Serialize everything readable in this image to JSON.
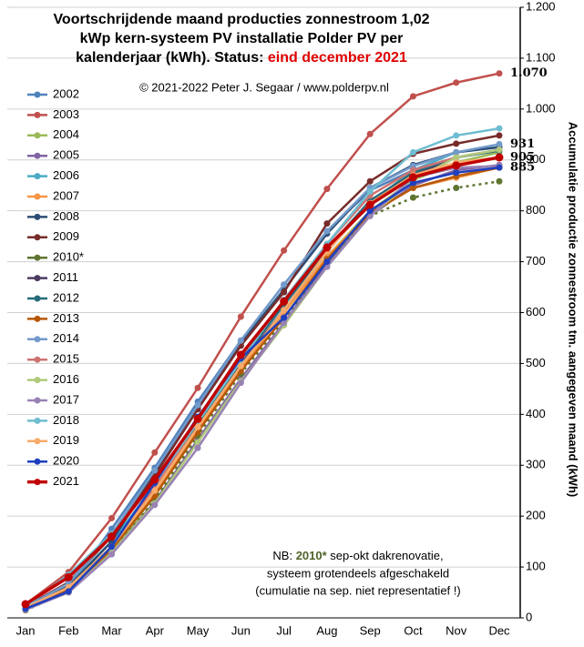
{
  "chart_data": {
    "type": "line",
    "title_lines": [
      "Voortschrijdende maand producties zonnestroom 1,02",
      "kWp kern-systeem PV installatie Polder PV per"
    ],
    "title_last": "kalenderjaar (kWh). Status: ",
    "status": "eind december 2021",
    "status_color": "#e00000",
    "subtitle": "© 2021-2022 Peter J. Segaar / www.polderpv.nl",
    "y_label": "Accumulatie productie zonnestroom tm. aangegeven maand (kWh)",
    "note": {
      "prefix": "NB: ",
      "highlight": "2010*",
      "highlight_color": "#4f6228",
      "rest": " sep-okt dakrenovatie,",
      "lines": [
        "systeem grotendeels afgeschakeld",
        "(cumulatie na sep. niet representatief !)"
      ]
    },
    "categories": [
      "Jan",
      "Feb",
      "Mar",
      "Apr",
      "May",
      "Jun",
      "Jul",
      "Aug",
      "Sep",
      "Oct",
      "Nov",
      "Dec"
    ],
    "ylim": [
      0,
      1200
    ],
    "yticks": [
      0,
      100,
      200,
      300,
      400,
      500,
      600,
      700,
      800,
      900,
      {
        "value": 1000,
        "label": "1.000"
      },
      {
        "value": 1100,
        "label": "1.100"
      },
      {
        "value": 1200,
        "label": "1.200"
      }
    ],
    "grid": true,
    "series": [
      {
        "name": "2002",
        "color": "#4f81bd",
        "values": [
          20,
          60,
          175,
          295,
          425,
          545,
          655,
          760,
          840,
          880,
          905,
          918
        ]
      },
      {
        "name": "2003",
        "color": "#c0504d",
        "values": [
          27,
          90,
          196,
          325,
          452,
          592,
          722,
          843,
          951,
          1025,
          1052,
          1070
        ],
        "value_labels": [
          null,
          null,
          null,
          null,
          null,
          null,
          null,
          null,
          null,
          null,
          null,
          "1.070"
        ]
      },
      {
        "name": "2004",
        "color": "#9bbb59",
        "values": [
          18,
          55,
          130,
          240,
          365,
          490,
          600,
          710,
          800,
          860,
          895,
          915
        ]
      },
      {
        "name": "2005",
        "color": "#8064a2",
        "values": [
          17,
          52,
          128,
          228,
          350,
          470,
          580,
          695,
          790,
          850,
          880,
          890
        ]
      },
      {
        "name": "2006",
        "color": "#4bacc6",
        "values": [
          22,
          65,
          150,
          260,
          385,
          505,
          615,
          720,
          815,
          880,
          915,
          925
        ]
      },
      {
        "name": "2007",
        "color": "#f79646",
        "values": [
          19,
          58,
          135,
          245,
          370,
          490,
          600,
          710,
          795,
          845,
          865,
          885
        ]
      },
      {
        "name": "2008",
        "color": "#2c4d75",
        "values": [
          20,
          62,
          150,
          285,
          415,
          540,
          645,
          755,
          845,
          890,
          915,
          925
        ]
      },
      {
        "name": "2009",
        "color": "#772c2a",
        "values": [
          22,
          70,
          160,
          280,
          410,
          535,
          640,
          775,
          858,
          912,
          932,
          948
        ]
      },
      {
        "name": "2010*",
        "color": "#5f7530",
        "dotted": true,
        "values": [
          15,
          52,
          128,
          232,
          358,
          480,
          585,
          700,
          790,
          826,
          845,
          858
        ]
      },
      {
        "name": "2011",
        "color": "#4d3b62",
        "values": [
          18,
          55,
          138,
          255,
          380,
          500,
          605,
          720,
          820,
          870,
          905,
          920
        ]
      },
      {
        "name": "2012",
        "color": "#276a7c",
        "values": [
          20,
          58,
          140,
          255,
          380,
          505,
          615,
          725,
          820,
          875,
          905,
          918
        ]
      },
      {
        "name": "2013",
        "color": "#b65708",
        "values": [
          18,
          55,
          135,
          240,
          365,
          485,
          590,
          705,
          795,
          845,
          868,
          885
        ]
      },
      {
        "name": "2014",
        "color": "#729aca",
        "values": [
          21,
          68,
          165,
          290,
          418,
          545,
          655,
          760,
          845,
          888,
          915,
          931
        ],
        "value_labels": [
          null,
          null,
          null,
          null,
          null,
          null,
          null,
          null,
          null,
          null,
          null,
          "931"
        ]
      },
      {
        "name": "2015",
        "color": "#cd7371",
        "values": [
          20,
          60,
          140,
          255,
          385,
          510,
          625,
          735,
          830,
          880,
          905,
          920
        ]
      },
      {
        "name": "2016",
        "color": "#afc97a",
        "values": [
          17,
          50,
          128,
          225,
          345,
          465,
          575,
          690,
          790,
          860,
          905,
          920
        ]
      },
      {
        "name": "2017",
        "color": "#9983b5",
        "values": [
          16,
          50,
          125,
          222,
          334,
          462,
          580,
          690,
          790,
          865,
          885,
          888
        ]
      },
      {
        "name": "2018",
        "color": "#6fbdd1",
        "values": [
          22,
          85,
          165,
          265,
          385,
          505,
          625,
          735,
          838,
          915,
          948,
          962
        ]
      },
      {
        "name": "2019",
        "color": "#f9ab6b",
        "values": [
          20,
          60,
          140,
          250,
          375,
          495,
          605,
          720,
          815,
          870,
          895,
          905
        ]
      },
      {
        "name": "2020",
        "color": "#1f3fbf",
        "values": [
          18,
          52,
          140,
          265,
          395,
          510,
          590,
          700,
          800,
          855,
          875,
          885
        ],
        "value_labels": [
          null,
          null,
          null,
          null,
          null,
          null,
          null,
          null,
          null,
          null,
          null,
          "885"
        ]
      },
      {
        "name": "2021",
        "color": "#c00000",
        "highlight": true,
        "values": [
          27,
          80,
          160,
          272,
          391,
          517,
          622,
          728,
          812,
          866,
          889,
          905
        ],
        "value_labels": [
          null,
          null,
          null,
          null,
          null,
          null,
          null,
          null,
          null,
          null,
          null,
          "905"
        ]
      }
    ]
  }
}
